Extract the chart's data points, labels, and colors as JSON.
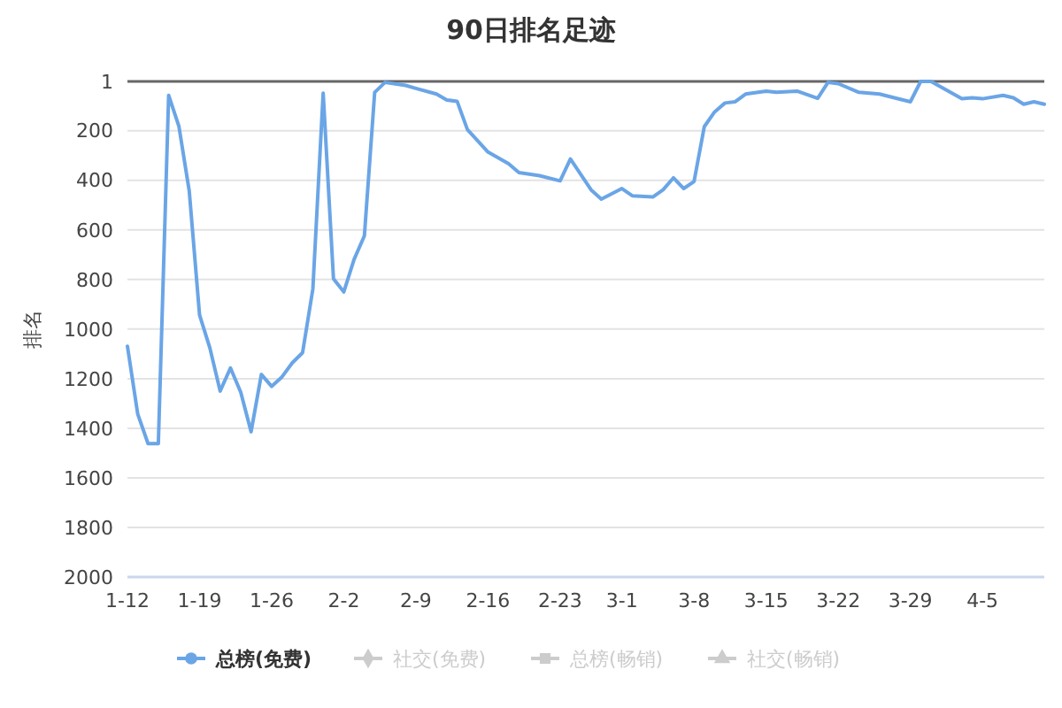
{
  "chart_data": {
    "type": "line",
    "title": "90日排名足迹",
    "ylabel": "排名",
    "x": [
      "--01-12",
      "--01-13",
      "--01-14",
      "--01-15",
      "--01-16",
      "--01-17",
      "--01-18",
      "--01-19",
      "--01-20",
      "--01-21",
      "--01-22",
      "--01-23",
      "--01-24",
      "--01-25",
      "--01-26",
      "--01-27",
      "--01-28",
      "--01-29",
      "--01-30",
      "--01-31",
      "--02-01",
      "--02-02",
      "--02-03",
      "--02-04",
      "--02-05",
      "--02-06",
      "--02-08",
      "--02-09",
      "--02-11",
      "--02-12",
      "--02-13",
      "--02-14",
      "--02-16",
      "--02-18",
      "--02-19",
      "--02-21",
      "--02-23",
      "--02-24",
      "--02-26",
      "--02-27",
      "--03-01",
      "--03-02",
      "--03-04",
      "--03-05",
      "--03-06",
      "--03-07",
      "--03-08",
      "--03-09",
      "--03-10",
      "--03-11",
      "--03-12",
      "--03-13",
      "--03-15",
      "--03-16",
      "--03-18",
      "--03-20",
      "--03-21",
      "--03-22",
      "--03-24",
      "--03-26",
      "--03-29",
      "--03-30",
      "--03-31",
      "--04-03",
      "--04-04",
      "--04-05",
      "--04-07",
      "--04-08",
      "--04-09",
      "--04-10",
      "--04-11"
    ],
    "series": [
      {
        "name": "总榜(免费)",
        "color": "#6aa5e6",
        "values": [
          1069,
          1343,
          1462,
          1462,
          57,
          183,
          443,
          943,
          1076,
          1250,
          1157,
          1255,
          1414,
          1183,
          1231,
          1193,
          1136,
          1095,
          838,
          48,
          797,
          850,
          719,
          624,
          45,
          5,
          17,
          29,
          52,
          76,
          81,
          195,
          286,
          333,
          369,
          381,
          402,
          314,
          438,
          476,
          433,
          462,
          467,
          438,
          390,
          433,
          405,
          183,
          124,
          88,
          83,
          52,
          40,
          45,
          40,
          69,
          5,
          10,
          45,
          52,
          83,
          1,
          1,
          71,
          67,
          71,
          57,
          67,
          93,
          83,
          93
        ]
      },
      {
        "name": "社交(免费)",
        "color": "#cccccc",
        "values": [
          null,
          null,
          null,
          null,
          null,
          null,
          null,
          null,
          null,
          null,
          null,
          null,
          null,
          null,
          null,
          null,
          null,
          null,
          null,
          null,
          null,
          null,
          null,
          null,
          null,
          null,
          null,
          null,
          null,
          null,
          null,
          null,
          null,
          null,
          null,
          null,
          null,
          null,
          null,
          null,
          null,
          null,
          null,
          null,
          null,
          null,
          null,
          null,
          null,
          null,
          null,
          null,
          null,
          null,
          null,
          null,
          null,
          null,
          null,
          null,
          null,
          null,
          null,
          null,
          null,
          null,
          null,
          null,
          null,
          null,
          null
        ]
      },
      {
        "name": "总榜(畅销)",
        "color": "#cccccc",
        "values": [
          null,
          null,
          null,
          null,
          null,
          null,
          null,
          null,
          null,
          null,
          null,
          null,
          null,
          null,
          null,
          null,
          null,
          null,
          null,
          null,
          null,
          null,
          null,
          null,
          null,
          null,
          null,
          null,
          null,
          null,
          null,
          null,
          null,
          null,
          null,
          null,
          null,
          null,
          null,
          null,
          null,
          null,
          null,
          null,
          null,
          null,
          null,
          null,
          null,
          null,
          null,
          null,
          null,
          null,
          null,
          null,
          null,
          null,
          null,
          null,
          null,
          null,
          null,
          null,
          null,
          null,
          null,
          null,
          null,
          null,
          null
        ]
      },
      {
        "name": "社交(畅销)",
        "color": "#cccccc",
        "values": [
          null,
          null,
          null,
          null,
          null,
          null,
          null,
          null,
          null,
          null,
          null,
          null,
          null,
          null,
          null,
          null,
          null,
          null,
          null,
          null,
          null,
          null,
          null,
          null,
          null,
          null,
          null,
          null,
          null,
          null,
          null,
          null,
          null,
          null,
          null,
          null,
          null,
          null,
          null,
          null,
          null,
          null,
          null,
          null,
          null,
          null,
          null,
          null,
          null,
          null,
          null,
          null,
          null,
          null,
          null,
          null,
          null,
          null,
          null,
          null,
          null,
          null,
          null,
          null,
          null,
          null,
          null,
          null,
          null,
          null,
          null
        ]
      }
    ],
    "xlim": [
      "--01-12",
      "--04-11"
    ],
    "xticks": [
      {
        "value": "--01-12",
        "label": "1-12"
      },
      {
        "value": "--01-19",
        "label": "1-19"
      },
      {
        "value": "--01-26",
        "label": "1-26"
      },
      {
        "value": "--02-02",
        "label": "2-2"
      },
      {
        "value": "--02-09",
        "label": "2-9"
      },
      {
        "value": "--02-16",
        "label": "2-16"
      },
      {
        "value": "--02-23",
        "label": "2-23"
      },
      {
        "value": "--03-01",
        "label": "3-1"
      },
      {
        "value": "--03-08",
        "label": "3-8"
      },
      {
        "value": "--03-15",
        "label": "3-15"
      },
      {
        "value": "--03-22",
        "label": "3-22"
      },
      {
        "value": "--03-29",
        "label": "3-29"
      },
      {
        "value": "--04-05",
        "label": "4-5"
      }
    ],
    "ylim": [
      2000,
      1
    ],
    "yticks": [
      1,
      200,
      400,
      600,
      800,
      1000,
      1200,
      1400,
      1600,
      1800,
      2000
    ],
    "grid": "y",
    "legend": "bottom",
    "line_style": "solid"
  }
}
